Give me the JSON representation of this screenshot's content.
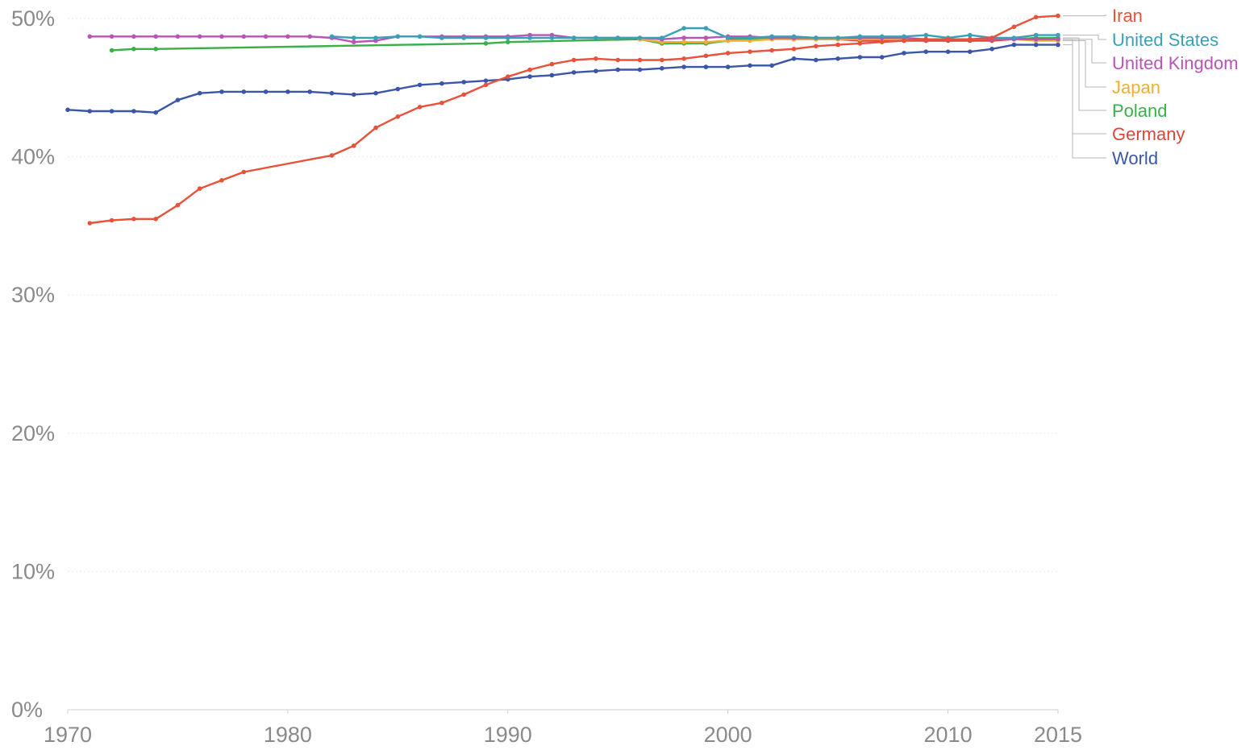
{
  "chart_data": {
    "type": "line",
    "ylim": [
      0,
      50
    ],
    "xlim": [
      1970,
      2015
    ],
    "grid": true,
    "legend_placement": "right (line-end labels with leader lines)",
    "x_ticks": [
      {
        "value": 1970,
        "label": "1970"
      },
      {
        "value": 1980,
        "label": "1980"
      },
      {
        "value": 1990,
        "label": "1990"
      },
      {
        "value": 2000,
        "label": "2000"
      },
      {
        "value": 2010,
        "label": "2010"
      },
      {
        "value": 2015,
        "label": "2015"
      }
    ],
    "y_ticks": [
      {
        "value": 0,
        "label": "0%"
      },
      {
        "value": 10,
        "label": "10%"
      },
      {
        "value": 20,
        "label": "20%"
      },
      {
        "value": 30,
        "label": "30%"
      },
      {
        "value": 40,
        "label": "40%"
      },
      {
        "value": 50,
        "label": "50%"
      }
    ],
    "series": [
      {
        "name": "Iran",
        "color": "#e8523b",
        "points": [
          [
            1971,
            35.2
          ],
          [
            1972,
            35.4
          ],
          [
            1973,
            35.5
          ],
          [
            1974,
            35.5
          ],
          [
            1975,
            36.5
          ],
          [
            1976,
            37.7
          ],
          [
            1977,
            38.3
          ],
          [
            1978,
            38.9
          ],
          [
            1982,
            40.1
          ],
          [
            1983,
            40.8
          ],
          [
            1984,
            42.1
          ],
          [
            1985,
            42.9
          ],
          [
            1986,
            43.6
          ],
          [
            1987,
            43.9
          ],
          [
            1988,
            44.5
          ],
          [
            1989,
            45.2
          ],
          [
            1990,
            45.8
          ],
          [
            1991,
            46.3
          ],
          [
            1992,
            46.7
          ],
          [
            1993,
            47.0
          ],
          [
            1994,
            47.1
          ],
          [
            1995,
            47.0
          ],
          [
            1996,
            47.0
          ],
          [
            1997,
            47.0
          ],
          [
            1998,
            47.1
          ],
          [
            1999,
            47.3
          ],
          [
            2000,
            47.5
          ],
          [
            2001,
            47.6
          ],
          [
            2002,
            47.7
          ],
          [
            2003,
            47.8
          ],
          [
            2004,
            48.0
          ],
          [
            2005,
            48.1
          ],
          [
            2006,
            48.2
          ],
          [
            2007,
            48.3
          ],
          [
            2008,
            48.4
          ],
          [
            2009,
            48.5
          ],
          [
            2010,
            48.5
          ],
          [
            2011,
            48.5
          ],
          [
            2012,
            48.6
          ],
          [
            2013,
            49.4
          ],
          [
            2014,
            50.1
          ],
          [
            2015,
            50.2
          ]
        ]
      },
      {
        "name": "United States",
        "color": "#3aa0b7",
        "points": [
          [
            1982,
            48.7
          ],
          [
            1983,
            48.6
          ],
          [
            1984,
            48.6
          ],
          [
            1985,
            48.7
          ],
          [
            1986,
            48.7
          ],
          [
            1987,
            48.6
          ],
          [
            1988,
            48.6
          ],
          [
            1989,
            48.6
          ],
          [
            1990,
            48.6
          ],
          [
            1991,
            48.6
          ],
          [
            1992,
            48.6
          ],
          [
            1993,
            48.6
          ],
          [
            1994,
            48.6
          ],
          [
            1995,
            48.6
          ],
          [
            1996,
            48.6
          ],
          [
            1997,
            48.6
          ],
          [
            1998,
            49.3
          ],
          [
            1999,
            49.3
          ],
          [
            2000,
            48.6
          ],
          [
            2001,
            48.6
          ],
          [
            2002,
            48.7
          ],
          [
            2003,
            48.7
          ],
          [
            2004,
            48.6
          ],
          [
            2005,
            48.6
          ],
          [
            2006,
            48.7
          ],
          [
            2007,
            48.7
          ],
          [
            2008,
            48.7
          ],
          [
            2009,
            48.8
          ],
          [
            2010,
            48.6
          ],
          [
            2011,
            48.8
          ],
          [
            2012,
            48.6
          ],
          [
            2013,
            48.6
          ],
          [
            2014,
            48.8
          ],
          [
            2015,
            48.8
          ]
        ]
      },
      {
        "name": "United Kingdom",
        "color": "#b853b8",
        "points": [
          [
            1971,
            48.7
          ],
          [
            1972,
            48.7
          ],
          [
            1973,
            48.7
          ],
          [
            1974,
            48.7
          ],
          [
            1975,
            48.7
          ],
          [
            1976,
            48.7
          ],
          [
            1977,
            48.7
          ],
          [
            1978,
            48.7
          ],
          [
            1979,
            48.7
          ],
          [
            1980,
            48.7
          ],
          [
            1981,
            48.7
          ],
          [
            1982,
            48.6
          ],
          [
            1983,
            48.3
          ],
          [
            1984,
            48.4
          ],
          [
            1985,
            48.7
          ],
          [
            1986,
            48.7
          ],
          [
            1987,
            48.7
          ],
          [
            1988,
            48.7
          ],
          [
            1989,
            48.7
          ],
          [
            1990,
            48.7
          ],
          [
            1991,
            48.8
          ],
          [
            1992,
            48.8
          ],
          [
            1993,
            48.6
          ],
          [
            1994,
            48.6
          ],
          [
            1995,
            48.6
          ],
          [
            1996,
            48.6
          ],
          [
            1997,
            48.5
          ],
          [
            1998,
            48.6
          ],
          [
            1999,
            48.6
          ],
          [
            2000,
            48.7
          ],
          [
            2001,
            48.7
          ],
          [
            2002,
            48.6
          ],
          [
            2003,
            48.6
          ],
          [
            2004,
            48.6
          ],
          [
            2005,
            48.6
          ],
          [
            2006,
            48.6
          ],
          [
            2007,
            48.6
          ],
          [
            2008,
            48.6
          ],
          [
            2009,
            48.5
          ],
          [
            2010,
            48.5
          ],
          [
            2011,
            48.5
          ],
          [
            2012,
            48.5
          ],
          [
            2013,
            48.5
          ],
          [
            2014,
            48.5
          ],
          [
            2015,
            48.5
          ]
        ]
      },
      {
        "name": "Japan",
        "color": "#f2ae32",
        "points": [
          [
            1996,
            48.5
          ],
          [
            1997,
            48.3
          ],
          [
            1998,
            48.3
          ],
          [
            1999,
            48.3
          ],
          [
            2000,
            48.4
          ],
          [
            2001,
            48.4
          ],
          [
            2002,
            48.5
          ],
          [
            2003,
            48.5
          ],
          [
            2004,
            48.5
          ],
          [
            2005,
            48.5
          ],
          [
            2006,
            48.5
          ],
          [
            2007,
            48.5
          ],
          [
            2008,
            48.5
          ],
          [
            2009,
            48.5
          ],
          [
            2010,
            48.5
          ],
          [
            2011,
            48.5
          ],
          [
            2012,
            48.5
          ],
          [
            2013,
            48.5
          ],
          [
            2014,
            48.4
          ],
          [
            2015,
            48.4
          ]
        ]
      },
      {
        "name": "Poland",
        "color": "#3bb04a",
        "points": [
          [
            1972,
            47.7
          ],
          [
            1973,
            47.8
          ],
          [
            1974,
            47.8
          ],
          [
            1989,
            48.2
          ],
          [
            1990,
            48.3
          ],
          [
            1996,
            48.5
          ],
          [
            1997,
            48.2
          ],
          [
            1998,
            48.2
          ],
          [
            1999,
            48.2
          ],
          [
            2000,
            48.4
          ],
          [
            2001,
            48.5
          ],
          [
            2002,
            48.6
          ],
          [
            2003,
            48.6
          ],
          [
            2004,
            48.5
          ],
          [
            2005,
            48.5
          ],
          [
            2006,
            48.5
          ],
          [
            2007,
            48.5
          ],
          [
            2008,
            48.5
          ],
          [
            2009,
            48.5
          ],
          [
            2010,
            48.5
          ],
          [
            2011,
            48.5
          ],
          [
            2012,
            48.5
          ],
          [
            2013,
            48.5
          ],
          [
            2014,
            48.6
          ],
          [
            2015,
            48.6
          ]
        ]
      },
      {
        "name": "Germany",
        "color": "#d9473c",
        "points": [
          [
            2000,
            48.5
          ],
          [
            2001,
            48.5
          ],
          [
            2002,
            48.6
          ],
          [
            2003,
            48.5
          ],
          [
            2004,
            48.5
          ],
          [
            2005,
            48.5
          ],
          [
            2006,
            48.4
          ],
          [
            2007,
            48.4
          ],
          [
            2008,
            48.4
          ],
          [
            2009,
            48.4
          ],
          [
            2010,
            48.4
          ],
          [
            2011,
            48.4
          ],
          [
            2012,
            48.4
          ],
          [
            2013,
            48.5
          ],
          [
            2014,
            48.5
          ],
          [
            2015,
            48.5
          ]
        ]
      },
      {
        "name": "World",
        "color": "#3b56a8",
        "points": [
          [
            1970,
            43.4
          ],
          [
            1971,
            43.3
          ],
          [
            1972,
            43.3
          ],
          [
            1973,
            43.3
          ],
          [
            1974,
            43.2
          ],
          [
            1975,
            44.1
          ],
          [
            1976,
            44.6
          ],
          [
            1977,
            44.7
          ],
          [
            1978,
            44.7
          ],
          [
            1979,
            44.7
          ],
          [
            1980,
            44.7
          ],
          [
            1981,
            44.7
          ],
          [
            1982,
            44.6
          ],
          [
            1983,
            44.5
          ],
          [
            1984,
            44.6
          ],
          [
            1985,
            44.9
          ],
          [
            1986,
            45.2
          ],
          [
            1987,
            45.3
          ],
          [
            1988,
            45.4
          ],
          [
            1989,
            45.5
          ],
          [
            1990,
            45.6
          ],
          [
            1991,
            45.8
          ],
          [
            1992,
            45.9
          ],
          [
            1993,
            46.1
          ],
          [
            1994,
            46.2
          ],
          [
            1995,
            46.3
          ],
          [
            1996,
            46.3
          ],
          [
            1997,
            46.4
          ],
          [
            1998,
            46.5
          ],
          [
            1999,
            46.5
          ],
          [
            2000,
            46.5
          ],
          [
            2001,
            46.6
          ],
          [
            2002,
            46.6
          ],
          [
            2003,
            47.1
          ],
          [
            2004,
            47.0
          ],
          [
            2005,
            47.1
          ],
          [
            2006,
            47.2
          ],
          [
            2007,
            47.2
          ],
          [
            2008,
            47.5
          ],
          [
            2009,
            47.6
          ],
          [
            2010,
            47.6
          ],
          [
            2011,
            47.6
          ],
          [
            2012,
            47.8
          ],
          [
            2013,
            48.1
          ],
          [
            2014,
            48.1
          ],
          [
            2015,
            48.1
          ]
        ]
      }
    ]
  }
}
